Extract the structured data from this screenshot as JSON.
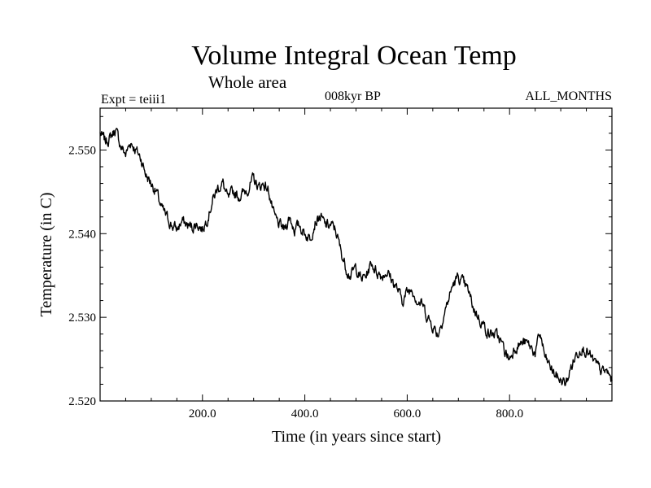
{
  "chart_data": {
    "type": "line",
    "title": "Volume Integral Ocean Temp",
    "subtitle": "Whole area",
    "left_label": "Expt = teiii1",
    "center_label": "008kyr BP",
    "right_label": "ALL_MONTHS",
    "xlabel": "Time (in years since start)",
    "ylabel": "Temperature (in C)",
    "xlim": [
      0,
      1000
    ],
    "ylim": [
      2.52,
      2.555
    ],
    "xticks": [
      200,
      400,
      600,
      800
    ],
    "xtick_labels": [
      "200.0",
      "400.0",
      "600.0",
      "800.0"
    ],
    "yticks": [
      2.52,
      2.53,
      2.54,
      2.55
    ],
    "ytick_labels": [
      "2.520",
      "2.530",
      "2.540",
      "2.550"
    ],
    "line_color": "#000000",
    "x": [
      0,
      10,
      20,
      30,
      40,
      50,
      60,
      70,
      80,
      90,
      100,
      110,
      120,
      130,
      140,
      150,
      160,
      170,
      180,
      190,
      200,
      210,
      220,
      230,
      240,
      250,
      260,
      270,
      280,
      290,
      300,
      310,
      320,
      330,
      340,
      350,
      360,
      370,
      380,
      390,
      400,
      410,
      420,
      430,
      440,
      450,
      460,
      470,
      480,
      490,
      500,
      510,
      520,
      530,
      540,
      550,
      560,
      570,
      580,
      590,
      600,
      610,
      620,
      630,
      640,
      650,
      660,
      670,
      680,
      690,
      700,
      710,
      720,
      730,
      740,
      750,
      760,
      770,
      780,
      790,
      800,
      810,
      820,
      830,
      840,
      850,
      860,
      870,
      880,
      890,
      900,
      910,
      920,
      930,
      940,
      950,
      960,
      970,
      980,
      990,
      1000
    ],
    "values": [
      2.552,
      2.551,
      2.5515,
      2.5525,
      2.5505,
      2.5495,
      2.551,
      2.55,
      2.549,
      2.547,
      2.546,
      2.545,
      2.543,
      2.542,
      2.541,
      2.5405,
      2.5415,
      2.541,
      2.5408,
      2.5412,
      2.5405,
      2.542,
      2.544,
      2.5455,
      2.546,
      2.544,
      2.545,
      2.5445,
      2.5448,
      2.5455,
      2.5465,
      2.5455,
      2.546,
      2.545,
      2.542,
      2.541,
      2.5405,
      2.542,
      2.5405,
      2.541,
      2.54,
      2.5395,
      2.5415,
      2.542,
      2.541,
      2.541,
      2.5405,
      2.538,
      2.536,
      2.535,
      2.536,
      2.5345,
      2.535,
      2.5365,
      2.5355,
      2.535,
      2.5355,
      2.5345,
      2.5335,
      2.532,
      2.533,
      2.5335,
      2.532,
      2.5315,
      2.53,
      2.529,
      2.528,
      2.53,
      2.532,
      2.534,
      2.5348,
      2.534,
      2.533,
      2.531,
      2.53,
      2.529,
      2.528,
      2.528,
      2.5275,
      2.526,
      2.525,
      2.5265,
      2.5268,
      2.527,
      2.5265,
      2.5258,
      2.528,
      2.525,
      2.524,
      2.523,
      2.5225,
      2.522,
      2.524,
      2.5255,
      2.5265,
      2.526,
      2.525,
      2.5242,
      2.5235,
      2.5235,
      2.5225
    ]
  }
}
